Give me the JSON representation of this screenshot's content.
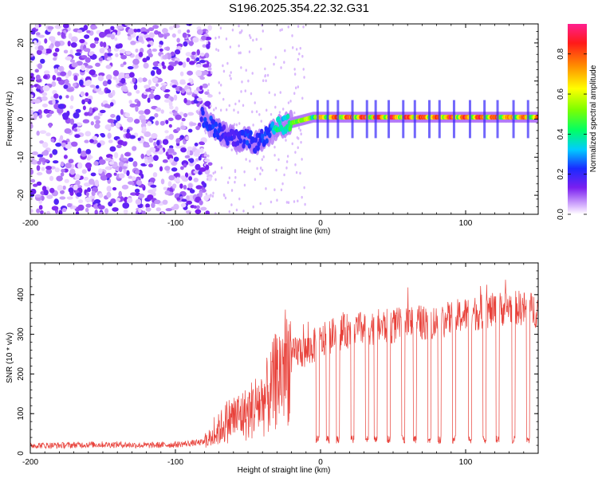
{
  "title": "S196.2025.354.22.32.G31",
  "chart_data": [
    {
      "type": "heatmap",
      "title": "S196.2025.354.22.32.G31",
      "xlabel": "Height of straight line (km)",
      "ylabel": "Frequency (Hz)",
      "xlim": [
        -200,
        150
      ],
      "ylim": [
        -25,
        25
      ],
      "x_ticks": [
        -200,
        -100,
        0,
        100
      ],
      "y_ticks": [
        -20,
        -10,
        0,
        10,
        20
      ],
      "x_tick_labels": [
        "-200",
        "-100",
        "0",
        "100"
      ],
      "y_tick_labels": [
        "-20",
        "-10",
        "0",
        "10",
        "20"
      ],
      "colorbar": {
        "label": "Normalized spectral amplitude",
        "range": [
          0,
          0.95
        ],
        "ticks": [
          0.0,
          0.2,
          0.4,
          0.6,
          0.8
        ],
        "tick_labels": [
          "0.0",
          "0.2",
          "0.4",
          "0.6",
          "0.8"
        ]
      },
      "track": {
        "height_km": [
          -82,
          -78,
          -72,
          -66,
          -60,
          -55,
          -50,
          -45,
          -40,
          -35,
          -30,
          -25,
          -20,
          -15,
          -10,
          -5,
          0,
          10,
          20,
          40,
          60,
          80,
          100,
          120,
          150
        ],
        "frequency_hz": [
          1,
          -1,
          -2.5,
          -4,
          -5,
          -5.5,
          -5,
          -6.5,
          -5,
          -4,
          -2,
          -1.5,
          -1,
          -0.5,
          0,
          0.5,
          0.5,
          0.5,
          0.5,
          0.5,
          0.5,
          0.5,
          0.5,
          0.5,
          0.5
        ],
        "amplitude": [
          0.2,
          0.25,
          0.25,
          0.2,
          0.2,
          0.22,
          0.25,
          0.2,
          0.25,
          0.25,
          0.45,
          0.35,
          0.5,
          0.55,
          0.65,
          0.7,
          0.75,
          0.85,
          0.9,
          0.9,
          0.9,
          0.9,
          0.9,
          0.9,
          0.8
        ]
      },
      "noise_region_km": [
        -200,
        -80
      ]
    },
    {
      "type": "line",
      "xlabel": "Height of straight line (km)",
      "ylabel": "SNR (10 * v/v)",
      "xlim": [
        -200,
        150
      ],
      "ylim": [
        0,
        480
      ],
      "x_ticks": [
        -200,
        -100,
        0,
        100
      ],
      "y_ticks": [
        0,
        100,
        200,
        300,
        400
      ],
      "x_tick_labels": [
        "-200",
        "-100",
        "0",
        "100"
      ],
      "y_tick_labels": [
        "0",
        "100",
        "200",
        "300",
        "400"
      ],
      "series": [
        {
          "name": "SNR",
          "color": "#e8413a",
          "x": [
            -200,
            -180,
            -160,
            -140,
            -120,
            -100,
            -90,
            -80,
            -75,
            -70,
            -65,
            -60,
            -55,
            -50,
            -45,
            -40,
            -35,
            -30,
            -25,
            -20,
            -15,
            -10,
            -5,
            0,
            10,
            20,
            30,
            40,
            50,
            60,
            70,
            80,
            90,
            100,
            110,
            120,
            130,
            140,
            150
          ],
          "y": [
            20,
            20,
            22,
            22,
            20,
            22,
            25,
            28,
            40,
            60,
            80,
            90,
            95,
            100,
            120,
            130,
            150,
            190,
            220,
            240,
            260,
            255,
            270,
            280,
            300,
            310,
            315,
            320,
            320,
            330,
            330,
            330,
            340,
            350,
            355,
            360,
            370,
            365,
            360
          ],
          "dropout_x_km": [
            -2,
            5,
            12,
            22,
            32,
            38,
            47,
            57,
            65,
            75,
            82,
            92,
            103,
            113,
            122,
            133,
            143
          ],
          "dropout_y": 25
        }
      ]
    }
  ]
}
